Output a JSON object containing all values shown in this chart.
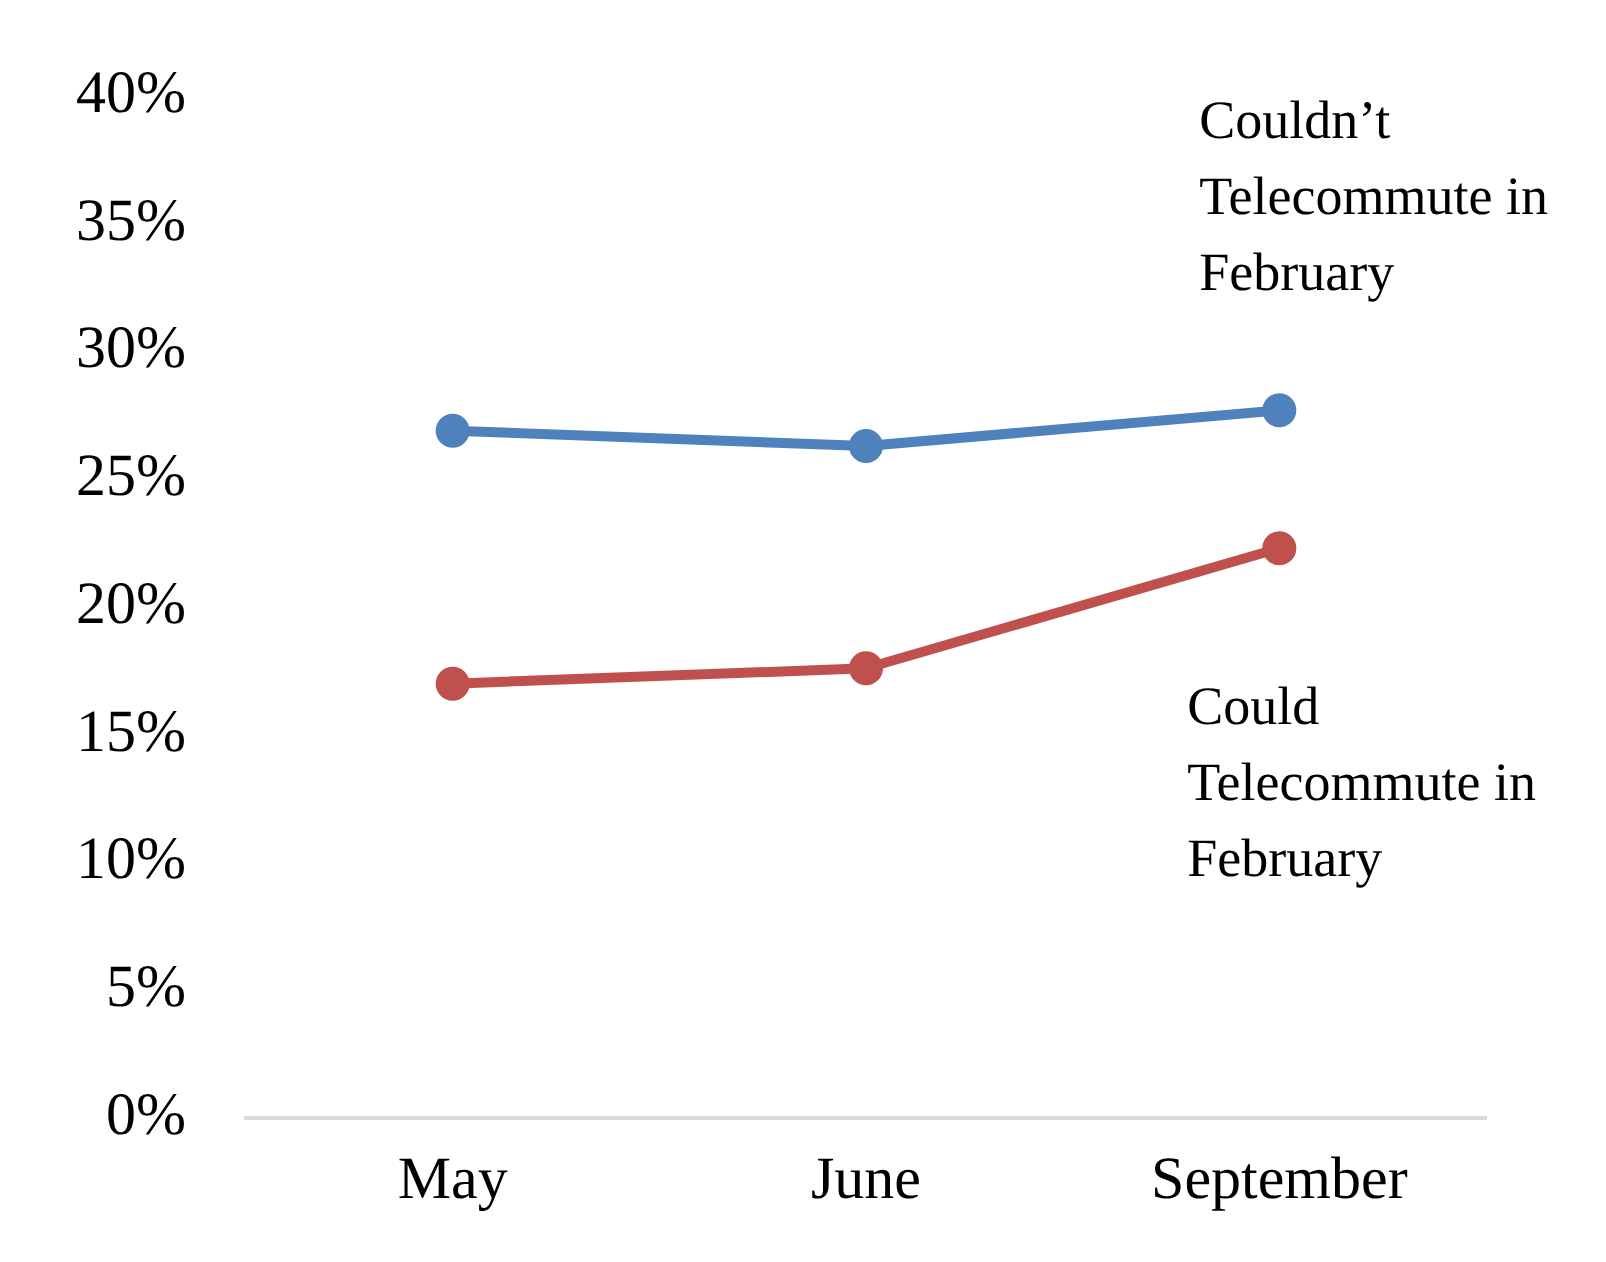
{
  "chart_data": {
    "type": "line",
    "categories": [
      "May",
      "June",
      "September"
    ],
    "series": [
      {
        "name": "Couldn’t Telecommute in February",
        "color": "#4f81bd",
        "values": [
          26.9,
          26.3,
          27.7
        ]
      },
      {
        "name": "Could Telecommute in February",
        "color": "#c0504d",
        "values": [
          17.0,
          17.6,
          22.3
        ]
      }
    ],
    "ylim": [
      0,
      40
    ],
    "yticks": [
      {
        "value": 0,
        "label": "0%"
      },
      {
        "value": 5,
        "label": "5%"
      },
      {
        "value": 10,
        "label": "10%"
      },
      {
        "value": 15,
        "label": "15%"
      },
      {
        "value": 20,
        "label": "20%"
      },
      {
        "value": 25,
        "label": "25%"
      },
      {
        "value": 30,
        "label": "30%"
      },
      {
        "value": 35,
        "label": "35%"
      },
      {
        "value": 40,
        "label": "40%"
      }
    ],
    "grid": false,
    "legend": false,
    "marker": "circle",
    "line_style": "solid"
  }
}
